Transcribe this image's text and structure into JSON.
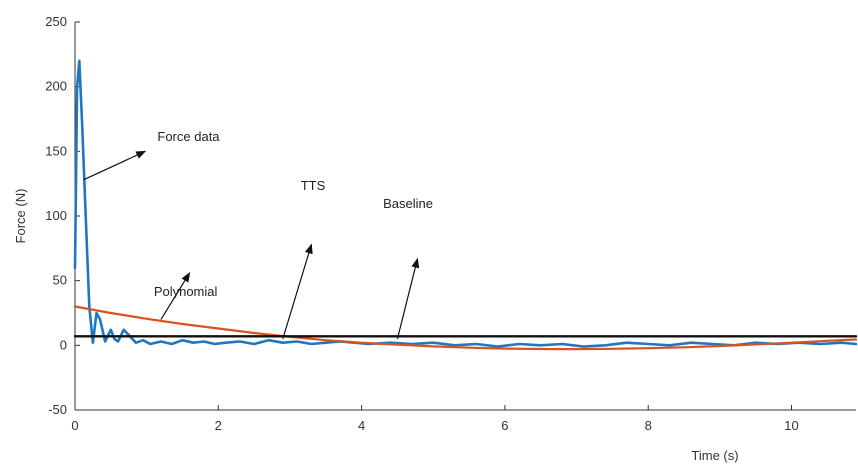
{
  "chart_data": {
    "type": "line",
    "xlabel": "Time (s)",
    "ylabel": "Force (N)",
    "xlim": [
      0,
      10.9
    ],
    "ylim": [
      -50,
      250
    ],
    "xticks": [
      0,
      2,
      4,
      6,
      8,
      10
    ],
    "yticks": [
      -50,
      0,
      50,
      100,
      150,
      200,
      250
    ],
    "grid": false,
    "series": [
      {
        "color": "#1f77c4",
        "x": [
          0,
          0.03,
          0.06,
          0.1,
          0.15,
          0.2,
          0.25,
          0.3,
          0.35,
          0.42,
          0.5,
          0.55,
          0.6,
          0.68,
          0.75,
          0.85,
          0.95,
          1.05,
          1.2,
          1.35,
          1.5,
          1.65,
          1.8,
          1.95,
          2.1,
          2.3,
          2.5,
          2.7,
          2.9,
          3.1,
          3.3,
          3.5,
          3.7,
          3.9,
          4.1,
          4.4,
          4.7,
          5.0,
          5.3,
          5.6,
          5.9,
          6.2,
          6.5,
          6.8,
          7.1,
          7.4,
          7.7,
          8.0,
          8.3,
          8.6,
          8.9,
          9.2,
          9.5,
          9.8,
          10.1,
          10.4,
          10.7,
          10.9
        ],
        "y": [
          60,
          200,
          220,
          170,
          100,
          30,
          2,
          25,
          20,
          3,
          12,
          5,
          3,
          12,
          8,
          2,
          4,
          1,
          3,
          1,
          4,
          2,
          3,
          1,
          2,
          3,
          1,
          4,
          2,
          3,
          1,
          2,
          3,
          2,
          1,
          2,
          1,
          2,
          0,
          1,
          -1,
          1,
          0,
          1,
          -1,
          0,
          2,
          1,
          0,
          2,
          1,
          0,
          2,
          1,
          2,
          1,
          2,
          1
        ]
      },
      {
        "color": "#d9541a",
        "x": [
          0,
          0.5,
          1,
          1.5,
          2,
          2.5,
          3,
          3.5,
          4,
          4.5,
          5,
          5.5,
          6,
          6.5,
          7,
          7.5,
          8,
          8.5,
          9,
          9.5,
          10,
          10.5,
          10.9
        ],
        "y": [
          30,
          25,
          20.5,
          16.5,
          13,
          9.5,
          6.5,
          4,
          2,
          0.5,
          -0.8,
          -1.8,
          -2.5,
          -2.8,
          -2.9,
          -2.7,
          -2.2,
          -1.5,
          -0.5,
          0.7,
          2,
          3.5,
          4.5
        ]
      },
      {
        "color": "#111111",
        "x": [
          0,
          10.9
        ],
        "y": [
          7,
          7
        ]
      }
    ],
    "annotations": [
      {
        "text": "Force data",
        "tx": 1.15,
        "ty": 158,
        "ax": 0.12,
        "ay": 128,
        "hx": 0.98,
        "hy": 150
      },
      {
        "text": "Polynomial",
        "tx": 1.1,
        "ty": 38,
        "ax": 1.2,
        "ay": 20,
        "hx": 1.6,
        "hy": 56
      },
      {
        "text": "TTS",
        "tx": 3.15,
        "ty": 120,
        "ax": 2.9,
        "ay": 5,
        "hx": 3.3,
        "hy": 78
      },
      {
        "text": "Baseline",
        "tx": 4.3,
        "ty": 106,
        "ax": 4.5,
        "ay": 5,
        "hx": 4.78,
        "hy": 67
      }
    ]
  }
}
